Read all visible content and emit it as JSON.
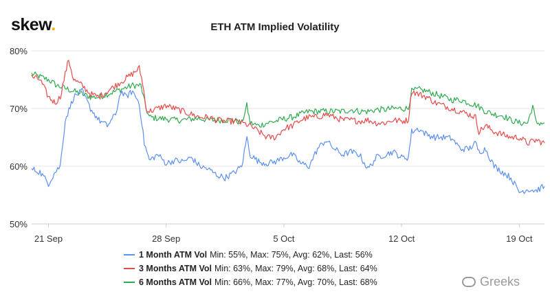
{
  "brand": {
    "name": "skew",
    "dot": "."
  },
  "chart_data": {
    "type": "line",
    "title": "ETH ATM Implied Volatility",
    "xlabel": "",
    "ylabel": "",
    "x_unit": "days since 20 Sep",
    "x_range": [
      0,
      30.5
    ],
    "ylim": [
      50,
      80
    ],
    "y_ticks": [
      {
        "value": 50,
        "label": "50%"
      },
      {
        "value": 60,
        "label": "60%"
      },
      {
        "value": 70,
        "label": "70%"
      },
      {
        "value": 80,
        "label": "80%"
      }
    ],
    "x_ticks": [
      {
        "value": 1,
        "label": "21 Sep"
      },
      {
        "value": 8,
        "label": "28 Sep"
      },
      {
        "value": 15,
        "label": "5 Oct"
      },
      {
        "value": 22,
        "label": "12 Oct"
      },
      {
        "value": 29,
        "label": "19 Oct"
      }
    ],
    "grid": "horizontal",
    "legend_position": "bottom",
    "series": [
      {
        "name": "1 Month ATM Vol",
        "stats": "Min: 55%, Max: 75%, Avg: 62%, Last: 56%",
        "color": "#5b8ff0",
        "points": [
          [
            0,
            59.5
          ],
          [
            0.5,
            59
          ],
          [
            1,
            57
          ],
          [
            1.4,
            59
          ],
          [
            1.7,
            60
          ],
          [
            2,
            68
          ],
          [
            2.5,
            72
          ],
          [
            3,
            73
          ],
          [
            3.5,
            70
          ],
          [
            4,
            68
          ],
          [
            4.5,
            67
          ],
          [
            5,
            69
          ],
          [
            5.3,
            73
          ],
          [
            5.6,
            72
          ],
          [
            6,
            73
          ],
          [
            6.4,
            71
          ],
          [
            6.7,
            64
          ],
          [
            7,
            61
          ],
          [
            7.5,
            62
          ],
          [
            8,
            60.5
          ],
          [
            8.5,
            61
          ],
          [
            9,
            60.8
          ],
          [
            9.5,
            61.5
          ],
          [
            10,
            60
          ],
          [
            10.5,
            59.5
          ],
          [
            11,
            58.5
          ],
          [
            11.5,
            58
          ],
          [
            12,
            58.8
          ],
          [
            12.5,
            60
          ],
          [
            12.8,
            65
          ],
          [
            13,
            62
          ],
          [
            13.5,
            60.8
          ],
          [
            14,
            60.5
          ],
          [
            14.5,
            60.8
          ],
          [
            15,
            61.5
          ],
          [
            15.5,
            62
          ],
          [
            16,
            60.5
          ],
          [
            16.5,
            60
          ],
          [
            17,
            63
          ],
          [
            17.5,
            64.5
          ],
          [
            18,
            63
          ],
          [
            18.5,
            62
          ],
          [
            19,
            62.5
          ],
          [
            19.5,
            62
          ],
          [
            20,
            59.5
          ],
          [
            20.5,
            61.5
          ],
          [
            21,
            62
          ],
          [
            21.5,
            62.5
          ],
          [
            22,
            61.5
          ],
          [
            22.4,
            61.5
          ],
          [
            22.6,
            66
          ],
          [
            23,
            66.5
          ],
          [
            23.5,
            65.5
          ],
          [
            24,
            65
          ],
          [
            24.5,
            65
          ],
          [
            25,
            64.8
          ],
          [
            25.5,
            63
          ],
          [
            26,
            63
          ],
          [
            26.4,
            64
          ],
          [
            26.6,
            62.5
          ],
          [
            27,
            63
          ],
          [
            27.5,
            60
          ],
          [
            28,
            59
          ],
          [
            28.5,
            58
          ],
          [
            29,
            55.5
          ],
          [
            29.5,
            56
          ],
          [
            30,
            55.8
          ],
          [
            30.5,
            56.5
          ]
        ]
      },
      {
        "name": "3 Months ATM Vol",
        "stats": "Min: 63%, Max: 79%, Avg: 68%, Last: 64%",
        "color": "#e84848",
        "points": [
          [
            0,
            75.5
          ],
          [
            0.5,
            75
          ],
          [
            1,
            72
          ],
          [
            1.4,
            71
          ],
          [
            1.7,
            72
          ],
          [
            2,
            76
          ],
          [
            2.2,
            78.5
          ],
          [
            2.5,
            75
          ],
          [
            3,
            74
          ],
          [
            3.5,
            72.5
          ],
          [
            4,
            72
          ],
          [
            4.5,
            73
          ],
          [
            5,
            74
          ],
          [
            5.5,
            75
          ],
          [
            6,
            76
          ],
          [
            6.4,
            77
          ],
          [
            6.6,
            74.5
          ],
          [
            6.8,
            70
          ],
          [
            7,
            69.5
          ],
          [
            7.5,
            70
          ],
          [
            8,
            70.5
          ],
          [
            8.5,
            70
          ],
          [
            9,
            69.5
          ],
          [
            9.5,
            69
          ],
          [
            10,
            68.5
          ],
          [
            10.5,
            68.5
          ],
          [
            11,
            68
          ],
          [
            11.5,
            67.8
          ],
          [
            12,
            67.8
          ],
          [
            12.5,
            67.5
          ],
          [
            13,
            67
          ],
          [
            13.5,
            66
          ],
          [
            14,
            65
          ],
          [
            14.5,
            65
          ],
          [
            15,
            66.5
          ],
          [
            15.5,
            67
          ],
          [
            16,
            68
          ],
          [
            16.5,
            68.5
          ],
          [
            17,
            68.5
          ],
          [
            17.5,
            69
          ],
          [
            18,
            68.5
          ],
          [
            18.5,
            68
          ],
          [
            19,
            68
          ],
          [
            19.5,
            67.8
          ],
          [
            20,
            68
          ],
          [
            20.5,
            67.5
          ],
          [
            21,
            67.5
          ],
          [
            21.5,
            68
          ],
          [
            22,
            67.8
          ],
          [
            22.4,
            68
          ],
          [
            22.6,
            73
          ],
          [
            23,
            72.5
          ],
          [
            23.5,
            72
          ],
          [
            24,
            71
          ],
          [
            24.5,
            70.5
          ],
          [
            25,
            70
          ],
          [
            25.5,
            69.5
          ],
          [
            26,
            69
          ],
          [
            26.4,
            68.5
          ],
          [
            26.6,
            66
          ],
          [
            27,
            67
          ],
          [
            27.5,
            66
          ],
          [
            28,
            65.5
          ],
          [
            28.5,
            65
          ],
          [
            29,
            65
          ],
          [
            29.5,
            64
          ],
          [
            30,
            64.5
          ],
          [
            30.5,
            64
          ]
        ]
      },
      {
        "name": "6 Months ATM Vol",
        "stats": "Min: 66%, Max: 77%, Avg: 70%, Last: 68%",
        "color": "#2eaa4e",
        "points": [
          [
            0,
            76
          ],
          [
            0.5,
            75.5
          ],
          [
            1,
            75
          ],
          [
            1.5,
            74
          ],
          [
            2,
            73.5
          ],
          [
            2.5,
            73
          ],
          [
            3,
            72.5
          ],
          [
            3.5,
            72
          ],
          [
            4,
            72
          ],
          [
            4.5,
            72.5
          ],
          [
            5,
            73
          ],
          [
            5.5,
            73.5
          ],
          [
            6,
            74
          ],
          [
            6.5,
            74
          ],
          [
            6.8,
            70
          ],
          [
            7,
            68.5
          ],
          [
            7.5,
            68.3
          ],
          [
            8,
            68.2
          ],
          [
            8.5,
            68
          ],
          [
            9,
            68
          ],
          [
            9.5,
            68.2
          ],
          [
            10,
            68.3
          ],
          [
            10.5,
            68
          ],
          [
            11,
            68
          ],
          [
            11.5,
            68
          ],
          [
            12,
            68
          ],
          [
            12.5,
            67.5
          ],
          [
            12.8,
            70.5
          ],
          [
            13,
            67.5
          ],
          [
            13.5,
            67
          ],
          [
            14,
            67.5
          ],
          [
            14.5,
            67.8
          ],
          [
            15,
            68.2
          ],
          [
            15.5,
            68.5
          ],
          [
            16,
            69
          ],
          [
            16.5,
            69.5
          ],
          [
            17,
            69.5
          ],
          [
            17.5,
            69.5
          ],
          [
            18,
            69.5
          ],
          [
            18.5,
            69.5
          ],
          [
            19,
            69.8
          ],
          [
            19.5,
            69.5
          ],
          [
            20,
            69.5
          ],
          [
            20.5,
            69.8
          ],
          [
            21,
            69.8
          ],
          [
            21.5,
            70
          ],
          [
            22,
            70
          ],
          [
            22.4,
            70
          ],
          [
            22.6,
            73
          ],
          [
            23,
            73.3
          ],
          [
            23.5,
            73
          ],
          [
            24,
            72.5
          ],
          [
            24.5,
            72
          ],
          [
            25,
            71.5
          ],
          [
            25.5,
            71.5
          ],
          [
            26,
            71
          ],
          [
            26.5,
            70.5
          ],
          [
            27,
            69.5
          ],
          [
            27.5,
            69
          ],
          [
            28,
            68.8
          ],
          [
            28.5,
            68
          ],
          [
            29,
            67.5
          ],
          [
            29.5,
            67.5
          ],
          [
            29.8,
            70.5
          ],
          [
            30,
            67.5
          ],
          [
            30.5,
            67.5
          ]
        ]
      }
    ]
  },
  "watermark": {
    "text": "Greeks"
  }
}
